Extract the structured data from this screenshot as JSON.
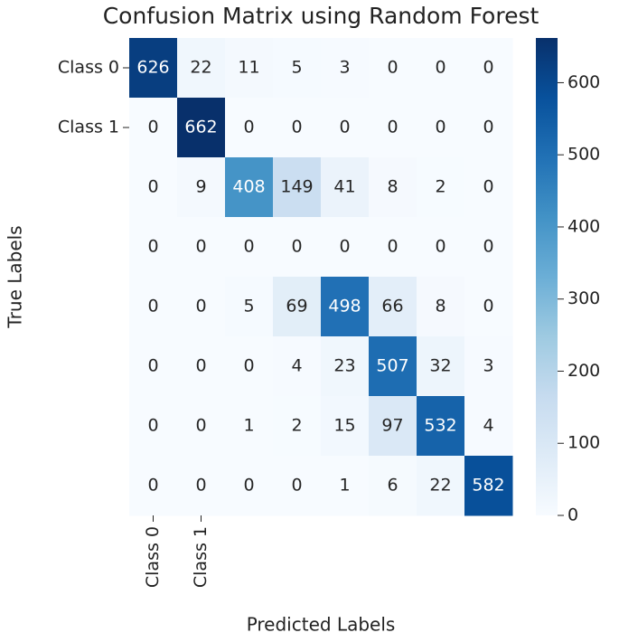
{
  "chart_data": {
    "type": "heatmap",
    "title": "Confusion Matrix using Random Forest",
    "xlabel": "Predicted Labels",
    "ylabel": "True Labels",
    "x_categories": [
      "Class 0",
      "Class 1",
      null,
      null,
      null,
      null,
      null,
      null
    ],
    "y_categories": [
      "Class 0",
      "Class 1",
      null,
      null,
      null,
      null,
      null,
      null
    ],
    "values": [
      [
        626,
        22,
        11,
        5,
        3,
        0,
        0,
        0
      ],
      [
        0,
        662,
        0,
        0,
        0,
        0,
        0,
        0
      ],
      [
        0,
        9,
        408,
        149,
        41,
        8,
        2,
        0
      ],
      [
        0,
        0,
        0,
        0,
        0,
        0,
        0,
        0
      ],
      [
        0,
        0,
        5,
        69,
        498,
        66,
        8,
        0
      ],
      [
        0,
        0,
        0,
        4,
        23,
        507,
        32,
        3
      ],
      [
        0,
        0,
        1,
        2,
        15,
        97,
        532,
        4
      ],
      [
        0,
        0,
        0,
        0,
        1,
        6,
        22,
        582
      ]
    ],
    "colormap": "Blues",
    "zlim": [
      0,
      662
    ],
    "zticks": [
      0,
      100,
      200,
      300,
      400,
      500,
      600
    ]
  }
}
